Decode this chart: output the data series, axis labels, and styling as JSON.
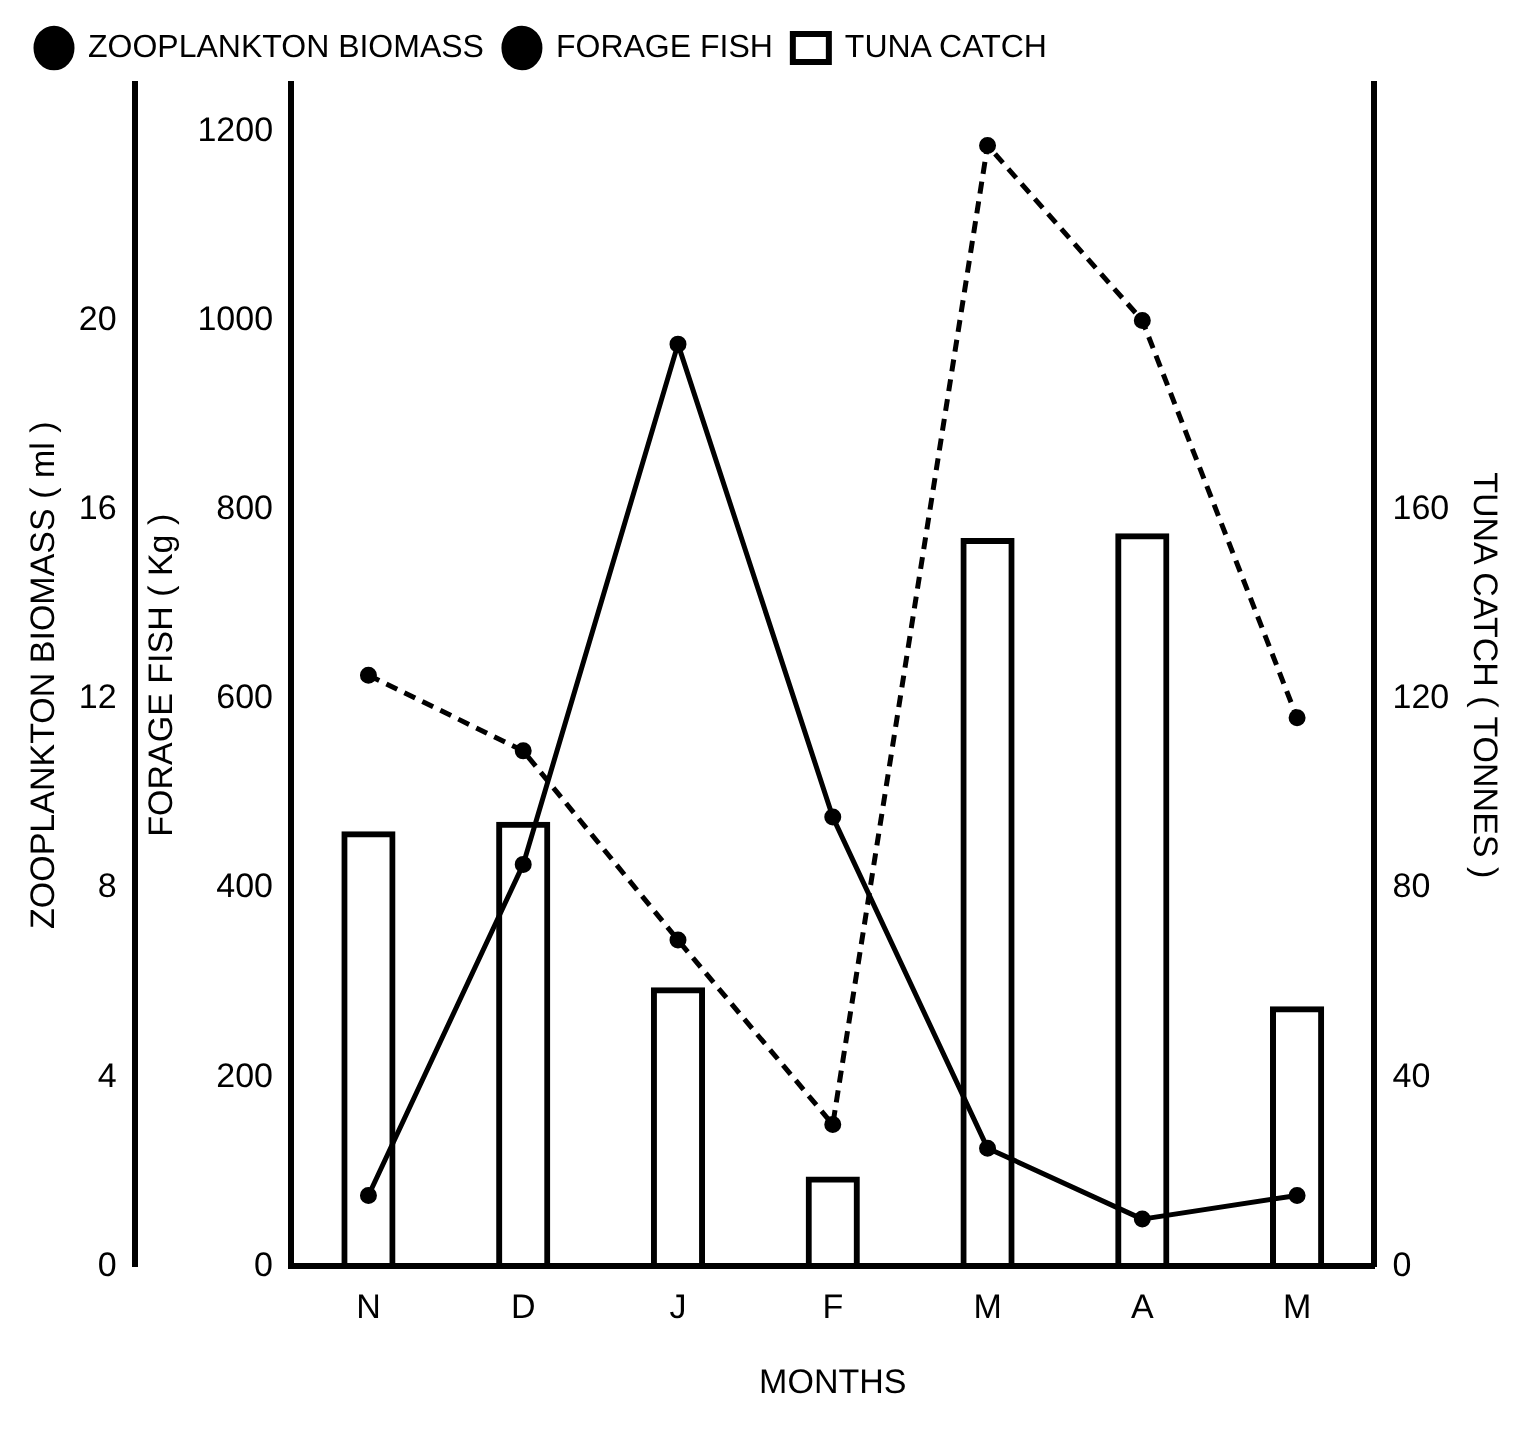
{
  "chart_data": {
    "type": "bar",
    "xlabel": "MONTHS",
    "ylabel": "FORAGE FISH ( Kg )",
    "y2label": "TUNA CATCH ( TONNES )",
    "y3label": "ZOOPLANKTON BIOMASS ( ml )",
    "categories": [
      "N",
      "D",
      "J",
      "F",
      "M",
      "A",
      "M"
    ],
    "series": [
      {
        "name": "ZOOPLANKTON BIOMASS",
        "type": "line",
        "axis": "y3",
        "color": "#000000",
        "line_style": "solid",
        "marker": "circle",
        "values": [
          1.5,
          8.5,
          19.5,
          9.5,
          2.5,
          1,
          1.5
        ]
      },
      {
        "name": "TUNA CATCH",
        "axis": "y2",
        "color": "#000000",
        "values": [
          92,
          94,
          59,
          19,
          154,
          155,
          55
        ]
      },
      {
        "name": "FORAGE FISH",
        "type": "line",
        "color": "#000000",
        "line_style": "dashed",
        "marker": "circle",
        "values": [
          625,
          545,
          345,
          150,
          1185,
          1000,
          580
        ]
      }
    ],
    "ylim": [
      0,
      1250
    ],
    "yticks": [
      0,
      200,
      400,
      600,
      800,
      1000,
      1200
    ],
    "y2lim": [
      0,
      250
    ],
    "y2ticks": [
      0,
      40,
      80,
      120,
      160
    ],
    "y3lim": [
      0,
      25
    ],
    "y3ticks": [
      0,
      4,
      8,
      12,
      16,
      20
    ],
    "grid": false,
    "legend": "top left"
  }
}
